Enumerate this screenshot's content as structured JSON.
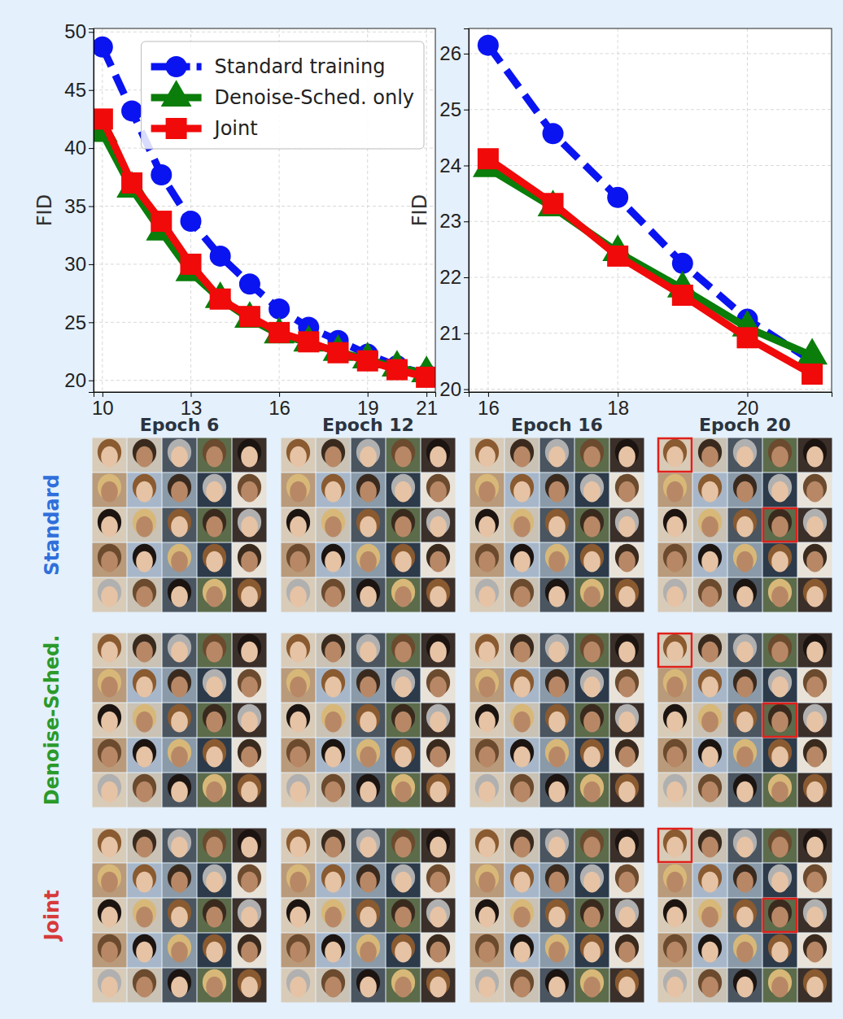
{
  "chart_data": [
    {
      "type": "line",
      "ylabel": "FID",
      "grid": true,
      "legend": "upper right",
      "x": [
        10,
        11,
        12,
        13,
        14,
        15,
        16,
        17,
        18,
        19,
        20,
        21
      ],
      "xlim": [
        9.7,
        21.3
      ],
      "xticks": [
        10,
        13,
        16,
        19,
        21
      ],
      "ylim": [
        19,
        50.3
      ],
      "yticks": [
        20,
        25,
        30,
        35,
        40,
        45,
        50
      ],
      "series": [
        {
          "name": "Standard training",
          "color": "#0a14f0",
          "marker": "circle",
          "line_style": "dashed",
          "values": [
            48.7,
            43.2,
            37.7,
            33.7,
            30.7,
            28.3,
            26.15,
            24.57,
            23.43,
            22.25,
            21.25,
            20.5
          ]
        },
        {
          "name": "Denoise-Sched. only",
          "color": "#0a7d0a",
          "marker": "triangle",
          "line_style": "solid",
          "values": [
            41.3,
            36.5,
            32.8,
            29.3,
            27.0,
            25.3,
            23.95,
            23.25,
            22.45,
            21.8,
            21.1,
            20.6
          ]
        },
        {
          "name": "Joint",
          "color": "#f00a0a",
          "marker": "square",
          "line_style": "solid",
          "values": [
            42.5,
            37.0,
            33.7,
            30.0,
            27.0,
            25.5,
            24.12,
            23.32,
            22.38,
            21.68,
            20.92,
            20.27
          ]
        }
      ]
    },
    {
      "type": "line",
      "ylabel": "FID",
      "grid": true,
      "x": [
        16,
        17,
        18,
        19,
        20,
        21
      ],
      "xlim": [
        15.7,
        21.3
      ],
      "xticks": [
        16,
        18,
        20
      ],
      "ylim": [
        19.95,
        26.45
      ],
      "yticks": [
        20,
        21,
        22,
        23,
        24,
        25,
        26
      ],
      "series": [
        {
          "name": "Standard training",
          "color": "#0a14f0",
          "marker": "circle",
          "line_style": "dashed",
          "values": [
            26.15,
            24.57,
            23.43,
            22.25,
            21.25,
            20.5
          ]
        },
        {
          "name": "Denoise-Sched. only",
          "color": "#0a7d0a",
          "marker": "triangle",
          "line_style": "solid",
          "values": [
            23.95,
            23.25,
            22.45,
            21.8,
            21.1,
            20.6
          ]
        },
        {
          "name": "Joint",
          "color": "#f00a0a",
          "marker": "square",
          "line_style": "solid",
          "values": [
            24.12,
            23.32,
            22.38,
            21.68,
            20.92,
            20.27
          ]
        }
      ]
    }
  ],
  "image_grid": {
    "columns": [
      "Epoch 6",
      "Epoch 12",
      "Epoch 16",
      "Epoch 20"
    ],
    "rows": [
      {
        "label": "Standard",
        "color": "#2f6fdb"
      },
      {
        "label": "Denoise-Sched.",
        "color": "#2a9a2a"
      },
      {
        "label": "Joint",
        "color": "#d63a3a"
      }
    ]
  }
}
